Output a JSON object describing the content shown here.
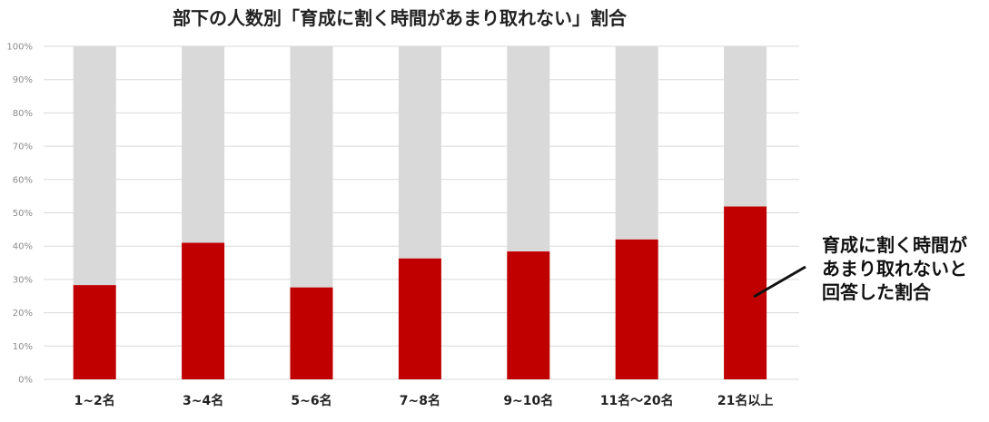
{
  "chart_data": {
    "type": "bar",
    "stacked": true,
    "title": "部下の人数別「育成に割く時間があまり取れない」割合",
    "categories": [
      "1~2名",
      "3~4名",
      "5~6名",
      "7~8名",
      "9~10名",
      "11名～20名",
      "21名以上"
    ],
    "series": [
      {
        "values": [
          28.3,
          41.0,
          27.6,
          36.3,
          38.4,
          42.0,
          51.9
        ]
      },
      {
        "values": [
          71.7,
          59.0,
          72.4,
          63.7,
          61.6,
          58.0,
          48.1
        ]
      }
    ],
    "ylim": [
      0,
      100
    ],
    "yticks": [
      "0%",
      "10%",
      "20%",
      "30%",
      "40%",
      "50%",
      "60%",
      "70%",
      "80%",
      "90%",
      "100%"
    ],
    "grid": true,
    "colors": {
      "highlight": "#c00000",
      "remainder": "#d9d9d9"
    },
    "annotation": {
      "lines": [
        "育成に割く時間が",
        "あまり取れないと",
        "回答した割合"
      ]
    }
  }
}
